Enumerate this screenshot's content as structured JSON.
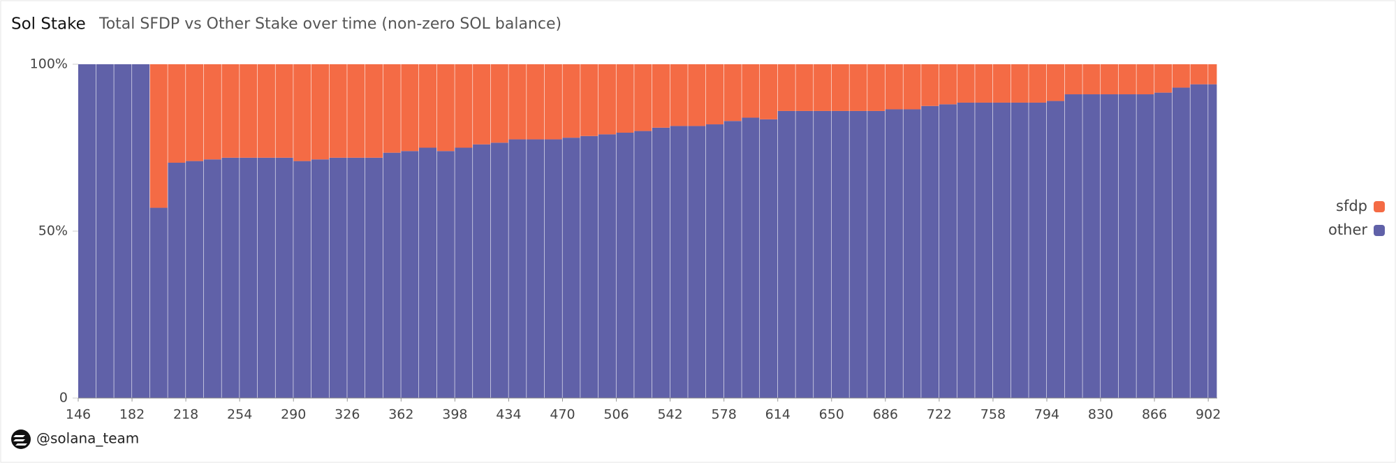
{
  "chart_data": {
    "type": "stacked_bar_percent",
    "title": "Sol Stake",
    "subtitle": "Total SFDP vs Other Stake over time (non-zero SOL balance)",
    "x": [
      146,
      158,
      170,
      182,
      194,
      206,
      218,
      230,
      242,
      254,
      266,
      278,
      290,
      302,
      314,
      326,
      338,
      350,
      362,
      374,
      386,
      398,
      410,
      422,
      434,
      446,
      458,
      470,
      482,
      494,
      506,
      518,
      530,
      542,
      554,
      566,
      578,
      590,
      602,
      614,
      626,
      638,
      650,
      662,
      674,
      686,
      698,
      710,
      722,
      734,
      746,
      758,
      770,
      782,
      794,
      806,
      818,
      830,
      842,
      854,
      866,
      878,
      890,
      902
    ],
    "series": [
      {
        "name": "other",
        "color": "#6061a8",
        "values": [
          100,
          100,
          100,
          100,
          57,
          70.5,
          71,
          71.5,
          72,
          72,
          72,
          72,
          71,
          71.5,
          72,
          72,
          72,
          73.5,
          74,
          75,
          74,
          75,
          76,
          76.5,
          77.5,
          77.5,
          77.5,
          78,
          78.5,
          79,
          79.5,
          80,
          81,
          81.5,
          81.5,
          82,
          83,
          84,
          83.5,
          86,
          86,
          86,
          86,
          86,
          86,
          86.5,
          86.5,
          87.5,
          88,
          88.5,
          88.5,
          88.5,
          88.5,
          88.5,
          89,
          91,
          91,
          91,
          91,
          91,
          91.5,
          93,
          94,
          94
        ]
      },
      {
        "name": "sfdp",
        "color": "#f46b45",
        "values": [
          0,
          0,
          0,
          0,
          43,
          29.5,
          29,
          28.5,
          28,
          28,
          28,
          28,
          29,
          28.5,
          28,
          28,
          28,
          26.5,
          26,
          25,
          26,
          25,
          24,
          23.5,
          22.5,
          22.5,
          22.5,
          22,
          21.5,
          21,
          20.5,
          20,
          19,
          18.5,
          18.5,
          18,
          17,
          16,
          16.5,
          14,
          14,
          14,
          14,
          14,
          14,
          13.5,
          13.5,
          12.5,
          12,
          11.5,
          11.5,
          11.5,
          11.5,
          11.5,
          11,
          9,
          9,
          9,
          9,
          9,
          8.5,
          7,
          6,
          6
        ]
      }
    ],
    "xlim": [
      146,
      908
    ],
    "xticks": [
      146,
      182,
      218,
      254,
      290,
      326,
      362,
      398,
      434,
      470,
      506,
      542,
      578,
      614,
      650,
      686,
      722,
      758,
      794,
      830,
      866,
      902
    ],
    "ylim": [
      0,
      100
    ],
    "yticks": [
      0,
      {
        "value": 50,
        "label": "50%"
      },
      {
        "value": 100,
        "label": "100%"
      }
    ],
    "legend": "right"
  },
  "footer": "@solana_team"
}
